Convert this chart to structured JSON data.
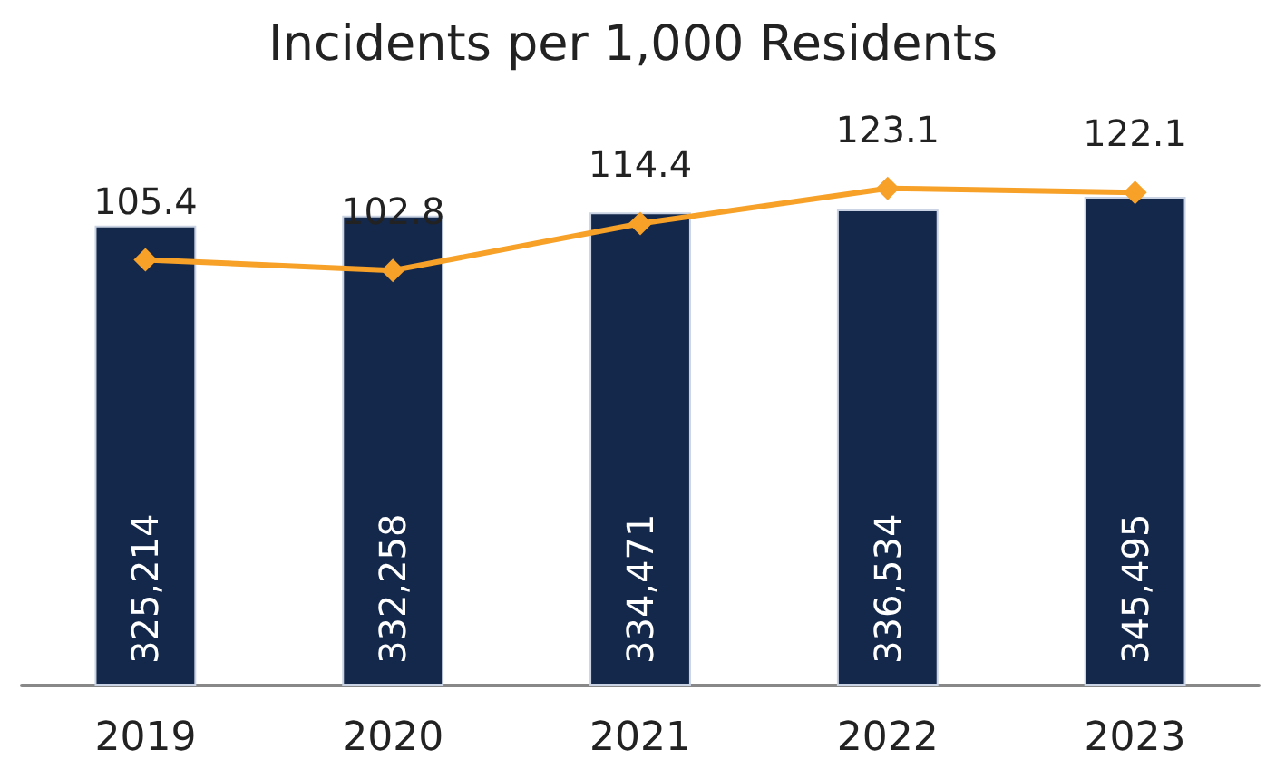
{
  "chart_data": {
    "type": "bar",
    "title": "Incidents per 1,000 Residents",
    "categories": [
      "2019",
      "2020",
      "2021",
      "2022",
      "2023"
    ],
    "series": [
      {
        "color": "#14284b",
        "values": [
          325214,
          332258,
          334471,
          336534,
          345495
        ],
        "value_labels": [
          "325,214",
          "332,258",
          "334,471",
          "336,534",
          "345,495"
        ]
      },
      {
        "type": "line",
        "axis": "y2",
        "color": "#f7a128",
        "marker": "diamond",
        "values": [
          105.4,
          102.8,
          114.4,
          123.1,
          122.1
        ]
      }
    ],
    "data_labels": true,
    "tick_labels": "x"
  }
}
